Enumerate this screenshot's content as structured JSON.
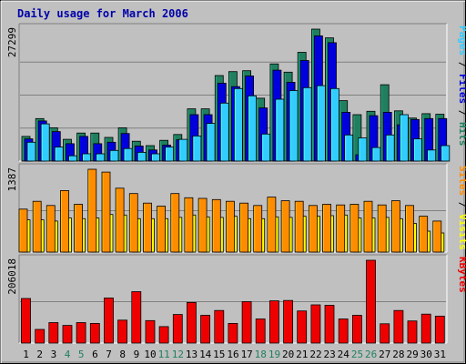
{
  "colors": {
    "background": "#C0C0C0",
    "title": "#0000AA",
    "hits": "#1F7F5F",
    "files": "#0000DD",
    "pages": "#33CCFF",
    "visits": "#FF8C00",
    "sites": "#FFFF00",
    "kbytes": "#EE0000",
    "weekend_day": "#1F7F5F",
    "weekday": "#000000"
  },
  "chart_data": {
    "type": "bar",
    "title": "Daily usage for March 2006",
    "days": [
      "1",
      "2",
      "3",
      "4",
      "5",
      "6",
      "7",
      "8",
      "9",
      "10",
      "11",
      "12",
      "13",
      "14",
      "15",
      "16",
      "17",
      "18",
      "19",
      "20",
      "21",
      "22",
      "23",
      "24",
      "25",
      "26",
      "27",
      "28",
      "29",
      "30",
      "31"
    ],
    "weekend_days": [
      "4",
      "5",
      "11",
      "12",
      "18",
      "19",
      "25",
      "26"
    ],
    "panels": [
      {
        "id": "hits-files-pages",
        "max_label": "27299",
        "ylim": [
          0,
          27299
        ],
        "right_labels": [
          {
            "text": "Pages",
            "color": "#33CCFF"
          },
          {
            "text": " / ",
            "color": "#000000"
          },
          {
            "text": "Files",
            "color": "#0000DD"
          },
          {
            "text": " / ",
            "color": "#000000"
          },
          {
            "text": "Hits",
            "color": "#1F7F5F"
          }
        ],
        "series": [
          {
            "name": "Hits",
            "color": "#1F7F5F",
            "values": [
              5100,
              8800,
              6900,
              4500,
              5800,
              5800,
              4900,
              6900,
              4100,
              3200,
              4300,
              5500,
              10800,
              10800,
              17700,
              18500,
              18700,
              13000,
              20100,
              18400,
              22500,
              27299,
              25500,
              12500,
              9600,
              10300,
              15800,
              10400,
              8900,
              9800,
              9700
            ]
          },
          {
            "name": "Files",
            "color": "#0000DD",
            "values": [
              4600,
              8300,
              6100,
              3600,
              5100,
              3600,
              3900,
              5700,
              3100,
              2300,
              3300,
              4400,
              9600,
              9600,
              16100,
              15400,
              17600,
              11000,
              18800,
              16300,
              20800,
              25900,
              24500,
              10100,
              1300,
              9400,
              10100,
              7500,
              8600,
              8800,
              8800
            ]
          },
          {
            "name": "Pages",
            "color": "#33CCFF",
            "values": [
              3900,
              7700,
              2900,
              1100,
              1500,
              1500,
              2200,
              2600,
              1800,
              1500,
              2900,
              4500,
              5200,
              7800,
              12000,
              15000,
              13500,
              5600,
              12800,
              14600,
              15200,
              15600,
              15000,
              5400,
              4800,
              2800,
              5400,
              9600,
              4600,
              2300,
              3200
            ]
          }
        ]
      },
      {
        "id": "visits-sites",
        "max_label": "1387",
        "ylim": [
          0,
          1387
        ],
        "right_labels": [
          {
            "text": "Sites",
            "color": "#FF8C00"
          },
          {
            "text": " / ",
            "color": "#000000"
          },
          {
            "text": "Visits",
            "color": "#FFFF00"
          }
        ],
        "series": [
          {
            "name": "Visits",
            "color": "#FF8C00",
            "values": [
              720,
              850,
              780,
              1030,
              800,
              1387,
              1340,
              1070,
              980,
              820,
              770,
              980,
              910,
              900,
              880,
              850,
              820,
              780,
              920,
              860,
              850,
              780,
              800,
              790,
              800,
              850,
              790,
              860,
              780,
              600,
              520
            ]
          },
          {
            "name": "Sites",
            "color": "#FFFF00",
            "values": [
              540,
              540,
              520,
              570,
              560,
              570,
              630,
              620,
              560,
              560,
              560,
              580,
              620,
              590,
              580,
              600,
              560,
              560,
              590,
              580,
              600,
              600,
              610,
              620,
              570,
              570,
              580,
              560,
              480,
              350,
              320
            ]
          }
        ]
      },
      {
        "id": "kbytes",
        "max_label": "206018",
        "ylim": [
          0,
          206018
        ],
        "right_labels": [
          {
            "text": "KBytes",
            "color": "#EE0000"
          }
        ],
        "series": [
          {
            "name": "KBytes",
            "color": "#EE0000",
            "values": [
              111000,
              34000,
              51000,
              44000,
              51000,
              49000,
              112000,
              57000,
              128000,
              56000,
              41000,
              71000,
              101000,
              69000,
              81000,
              49000,
              103000,
              60000,
              105000,
              106000,
              80000,
              95000,
              94000,
              60000,
              69000,
              206018,
              48000,
              81000,
              55000,
              72000,
              67000
            ]
          }
        ]
      }
    ]
  }
}
